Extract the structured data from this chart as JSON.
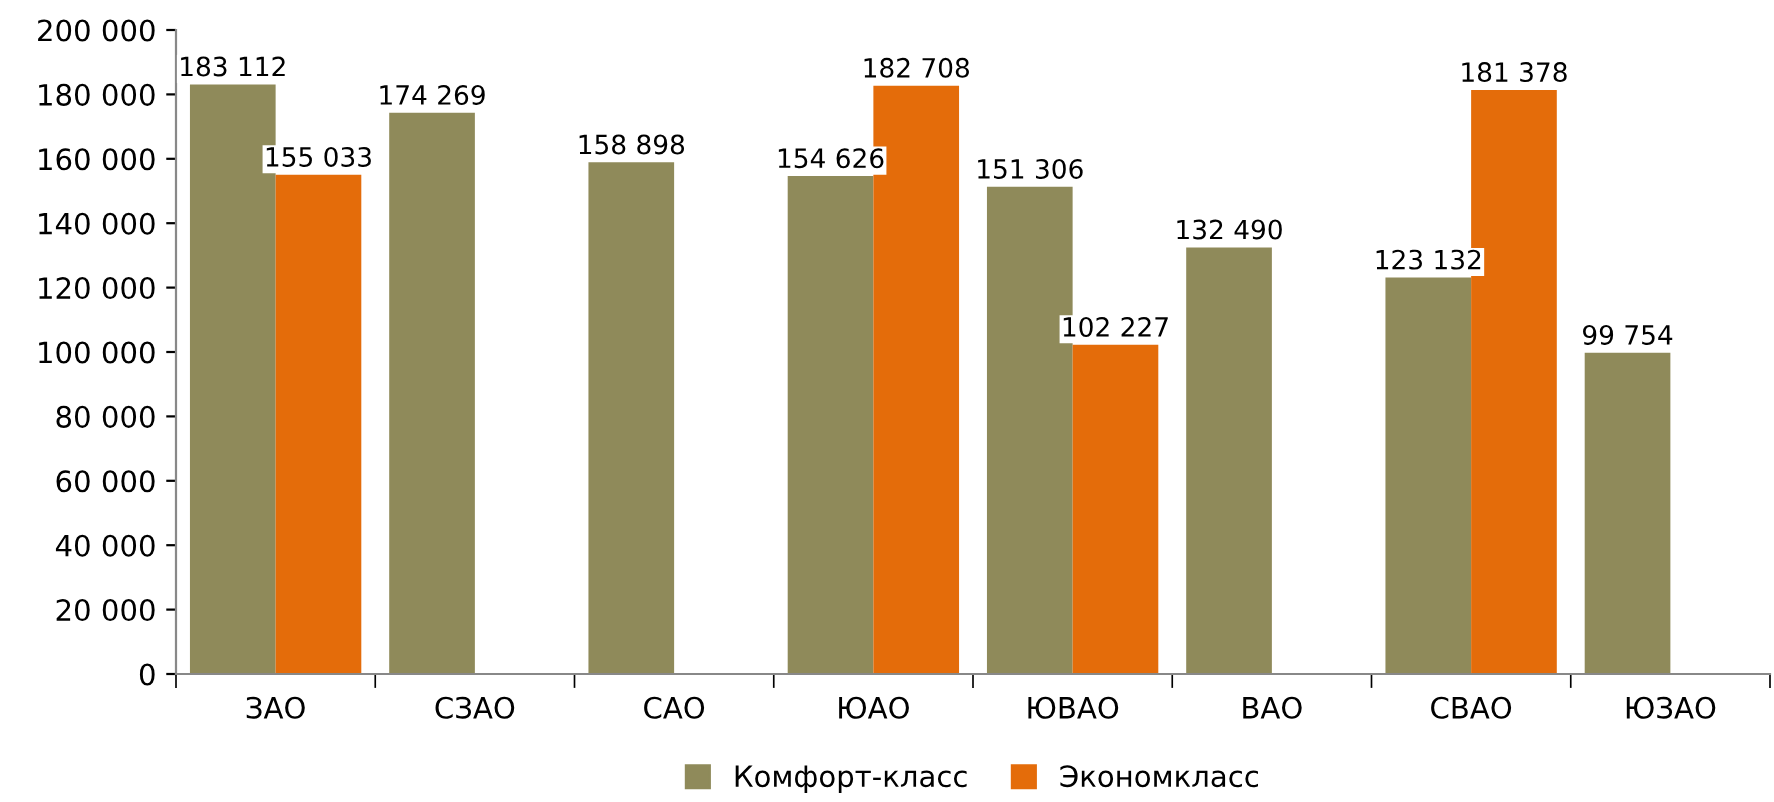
{
  "chart_data": {
    "type": "bar",
    "categories": [
      "ЗАО",
      "СЗАО",
      "САО",
      "ЮАО",
      "ЮВАО",
      "ВАО",
      "СВАО",
      "ЮЗАО"
    ],
    "series": [
      {
        "name": "Комфорт-класс",
        "color": "#8f8a5a",
        "values": [
          183112,
          174269,
          158898,
          154626,
          151306,
          132490,
          123132,
          99754
        ],
        "value_labels": [
          "183 112",
          "174 269",
          "158 898",
          "154 626",
          "151 306",
          "132 490",
          "123 132",
          "99 754"
        ]
      },
      {
        "name": "Экономкласс",
        "color": "#e46c0a",
        "values": [
          155033,
          null,
          null,
          182708,
          102227,
          null,
          181378,
          null
        ],
        "value_labels": [
          "155 033",
          null,
          null,
          "182 708",
          "102 227",
          null,
          "181 378",
          null
        ]
      }
    ],
    "ylim": [
      0,
      200000
    ],
    "yticks": [
      {
        "value": 0,
        "label": "0"
      },
      {
        "value": 20000,
        "label": "20 000"
      },
      {
        "value": 40000,
        "label": "40 000"
      },
      {
        "value": 60000,
        "label": "60 000"
      },
      {
        "value": 80000,
        "label": "80 000"
      },
      {
        "value": 100000,
        "label": "100 000"
      },
      {
        "value": 120000,
        "label": "120 000"
      },
      {
        "value": 140000,
        "label": "140 000"
      },
      {
        "value": 160000,
        "label": "160 000"
      },
      {
        "value": 180000,
        "label": "180 000"
      },
      {
        "value": 200000,
        "label": "200 000"
      }
    ],
    "grid": false,
    "legend": "bottom"
  }
}
